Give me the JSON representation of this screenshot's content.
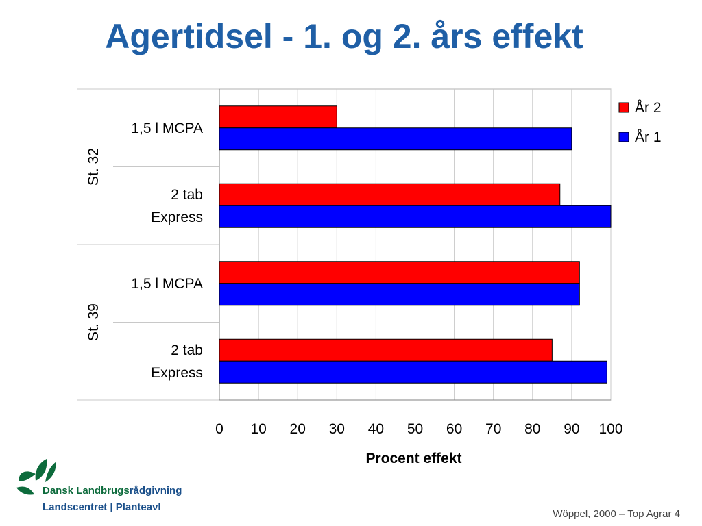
{
  "slide": {
    "title": "Agertidsel - 1. og 2. års effekt",
    "source": "Wöppel, 2000 – Top Agrar 4"
  },
  "logo": {
    "line1_main": "Dansk Landbrugs",
    "line1_sub": "rådgivning",
    "line2": "Landscentret | Planteavl"
  },
  "chart_data": {
    "type": "bar",
    "orientation": "horizontal",
    "title": "",
    "xlabel": "Procent effekt",
    "ylabel": "",
    "xlim": [
      0,
      100
    ],
    "xticks": [
      0,
      10,
      20,
      30,
      40,
      50,
      60,
      70,
      80,
      90,
      100
    ],
    "grid": true,
    "legend_position": "top-right",
    "groups": [
      {
        "label": "St. 32",
        "categories": [
          [
            "1,5 l MCPA"
          ],
          [
            "2 tab",
            "Express"
          ]
        ]
      },
      {
        "label": "St. 39",
        "categories": [
          [
            "1,5 l MCPA"
          ],
          [
            "2 tab",
            "Express"
          ]
        ]
      }
    ],
    "series": [
      {
        "name": "År 2",
        "color": "#ff0000",
        "values": [
          30,
          87,
          92,
          85
        ]
      },
      {
        "name": "År 1",
        "color": "#0000ff",
        "values": [
          90,
          100,
          92,
          99
        ]
      }
    ]
  }
}
